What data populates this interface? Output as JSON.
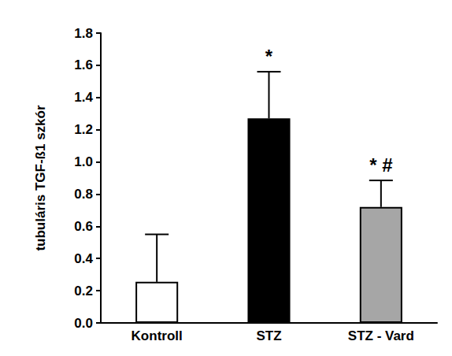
{
  "chart_data": {
    "type": "bar",
    "y_label": "tubuláris TGF-ß1 szkór",
    "categories": [
      "Kontroll",
      "STZ",
      "STZ - Vard"
    ],
    "values": [
      0.255,
      1.27,
      0.72
    ],
    "errors": [
      0.295,
      0.29,
      0.165
    ],
    "colors": [
      "#ffffff",
      "#000000",
      "#a6a6a6"
    ],
    "annotations": [
      {
        "category": "STZ",
        "text": "*"
      },
      {
        "category": "STZ - Vard",
        "text": "* #"
      }
    ],
    "ylim": [
      0,
      1.8
    ],
    "yticks": [
      {
        "value": 0,
        "label": "0.0"
      },
      0.2,
      0.4,
      0.6,
      0.8,
      {
        "value": 1,
        "label": "1.0"
      },
      1.2,
      1.4,
      1.6,
      1.8
    ],
    "grid": false
  }
}
